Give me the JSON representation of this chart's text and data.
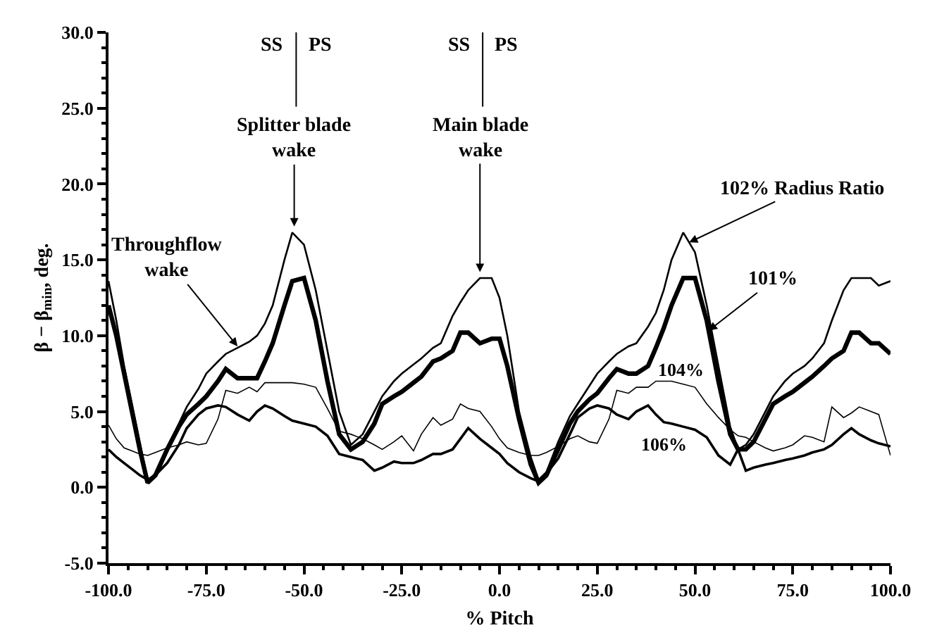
{
  "chart_data": {
    "type": "line",
    "xlabel": "% Pitch",
    "ylabel": "β − β$_{min}$, deg.",
    "x": [
      -100,
      -98,
      -96,
      -94,
      -92,
      -90,
      -88,
      -85,
      -82,
      -80,
      -77,
      -75,
      -72,
      -70,
      -67,
      -64,
      -62,
      -60,
      -58,
      -55,
      -53,
      -50,
      -47,
      -44,
      -41,
      -38,
      -35,
      -32,
      -30,
      -27,
      -25,
      -22,
      -20,
      -17,
      -15,
      -12,
      -10,
      -8,
      -5,
      -2,
      0,
      2,
      5,
      8,
      10,
      12,
      15,
      18,
      20,
      23,
      25,
      28,
      30,
      33,
      35,
      38,
      40,
      42,
      44,
      47,
      50,
      53,
      56,
      59,
      61,
      63,
      65,
      68,
      70,
      73,
      75,
      78,
      80,
      83,
      85,
      88,
      90,
      92,
      95,
      97,
      100
    ],
    "series": [
      {
        "name": "102% Radius Ratio",
        "color": "#000000",
        "values": [
          13.6,
          11,
          8,
          5.5,
          3,
          0.5,
          0.8,
          2.5,
          4.2,
          5.3,
          6.5,
          7.5,
          8.3,
          8.8,
          9.2,
          9.6,
          10,
          10.8,
          12,
          15,
          16.8,
          16,
          13,
          9,
          5,
          2.8,
          3.5,
          5,
          6,
          7,
          7.5,
          8.1,
          8.5,
          9.2,
          9.5,
          11.3,
          12.2,
          13,
          13.8,
          13.8,
          12.5,
          10,
          5,
          2,
          0.5,
          1,
          3,
          4.7,
          5.5,
          6.7,
          7.5,
          8.3,
          8.8,
          9.3,
          9.5,
          10.6,
          11.5,
          13,
          15,
          16.8,
          15.5,
          12,
          8,
          4,
          2.5,
          2.8,
          3.5,
          5,
          6,
          7,
          7.5,
          8,
          8.5,
          9.5,
          11,
          13,
          13.8,
          13.8,
          13.8,
          13.3,
          13.6
        ]
      },
      {
        "name": "101%",
        "color": "#000000",
        "values": [
          12,
          10,
          7.5,
          5,
          2.5,
          0.3,
          0.8,
          2.5,
          4,
          4.8,
          5.5,
          6,
          7,
          7.8,
          7.2,
          7.2,
          7.2,
          8.3,
          9.5,
          12,
          13.6,
          13.8,
          11,
          7,
          3.5,
          2.5,
          3,
          4.2,
          5.5,
          6,
          6.3,
          6.9,
          7.3,
          8.3,
          8.5,
          9,
          10.2,
          10.2,
          9.5,
          9.8,
          9.8,
          8,
          4.5,
          1.5,
          0.3,
          0.8,
          2.5,
          4.2,
          5,
          5.8,
          6.2,
          7.2,
          7.8,
          7.5,
          7.5,
          8,
          9.2,
          10.5,
          12,
          13.8,
          13.8,
          11,
          7,
          3.5,
          2.5,
          2.5,
          3,
          4.5,
          5.5,
          6,
          6.3,
          6.9,
          7.3,
          8,
          8.5,
          9,
          10.2,
          10.2,
          9.5,
          9.5,
          8.8
        ]
      },
      {
        "name": "104%",
        "color": "#000000",
        "values": [
          4.1,
          3.2,
          2.6,
          2.4,
          2.2,
          2.1,
          2.3,
          2.6,
          2.8,
          3.0,
          2.8,
          2.9,
          4.5,
          6.4,
          6.2,
          6.6,
          6.3,
          6.9,
          6.9,
          6.9,
          6.9,
          6.8,
          6.6,
          5.2,
          3.7,
          3.5,
          3.2,
          2.8,
          2.5,
          3.0,
          3.4,
          2.4,
          3.5,
          4.6,
          4.1,
          4.5,
          5.5,
          5.2,
          5.0,
          4.0,
          3.2,
          2.6,
          2.3,
          2.1,
          2.1,
          2.3,
          2.7,
          3.2,
          3.4,
          3.0,
          2.9,
          4.5,
          6.4,
          6.2,
          6.6,
          6.6,
          7.0,
          7.0,
          7.0,
          6.8,
          6.6,
          5.5,
          4.6,
          3.8,
          3.4,
          3.3,
          3.0,
          2.6,
          2.4,
          2.6,
          2.8,
          3.4,
          3.3,
          3.0,
          5.3,
          4.6,
          4.9,
          5.3,
          5.0,
          4.8,
          2.1
        ]
      },
      {
        "name": "106%",
        "color": "#000000",
        "values": [
          2.5,
          2.0,
          1.6,
          1.2,
          0.8,
          0.5,
          0.8,
          1.6,
          2.8,
          3.9,
          4.8,
          5.2,
          5.4,
          5.3,
          4.8,
          4.4,
          5.0,
          5.4,
          5.2,
          4.7,
          4.4,
          4.2,
          4.0,
          3.4,
          2.2,
          2.0,
          1.8,
          1.1,
          1.3,
          1.7,
          1.6,
          1.6,
          1.8,
          2.2,
          2.2,
          2.5,
          3.2,
          3.9,
          3.2,
          2.6,
          2.2,
          1.6,
          1.0,
          0.6,
          0.4,
          0.9,
          1.9,
          3.5,
          4.6,
          5.2,
          5.4,
          5.2,
          4.8,
          4.5,
          5.0,
          5.4,
          4.8,
          4.3,
          4.2,
          4.0,
          3.8,
          3.3,
          2.1,
          1.5,
          2.5,
          1.1,
          1.3,
          1.5,
          1.6,
          1.8,
          1.9,
          2.1,
          2.3,
          2.5,
          2.8,
          3.5,
          3.9,
          3.5,
          3.1,
          2.9,
          2.7
        ]
      }
    ],
    "xlim": [
      -100,
      100
    ],
    "ylim": [
      -5,
      30
    ],
    "xticks": [
      {
        "value": -100,
        "label": "-100.0"
      },
      {
        "value": -75,
        "label": "-75.0"
      },
      {
        "value": -50,
        "label": "-50.0"
      },
      {
        "value": -25,
        "label": "-25.0"
      },
      {
        "value": 0,
        "label": "0.0"
      },
      {
        "value": 25,
        "label": "25.0"
      },
      {
        "value": 50,
        "label": "50.0"
      },
      {
        "value": 75,
        "label": "75.0"
      },
      {
        "value": 100,
        "label": "100.0"
      }
    ],
    "yticks": [
      {
        "value": -5,
        "label": "-5.0"
      },
      {
        "value": 0,
        "label": "0.0"
      },
      {
        "value": 5,
        "label": "5.0"
      },
      {
        "value": 10,
        "label": "10.0"
      },
      {
        "value": 15,
        "label": "15.0"
      },
      {
        "value": 20,
        "label": "20.0"
      },
      {
        "value": 25,
        "label": "25.0"
      },
      {
        "value": 30,
        "label": "30.0"
      }
    ],
    "ref_lines": [
      {
        "axis": "x",
        "value": -52,
        "color": "#000000"
      },
      {
        "axis": "x",
        "value": -4.3,
        "color": "#000000"
      }
    ],
    "annotations": [
      {
        "text": "Throughflow wake",
        "x": -67,
        "y": 9.3
      },
      {
        "text": "Splitter blade wake",
        "x": -52.5,
        "y": 17.2
      },
      {
        "text": "Main blade wake",
        "x": -5,
        "y": 14.2
      },
      "SS",
      "PS",
      "SS",
      "PS"
    ],
    "legend": false,
    "marker": "none",
    "line_style": "solid"
  }
}
